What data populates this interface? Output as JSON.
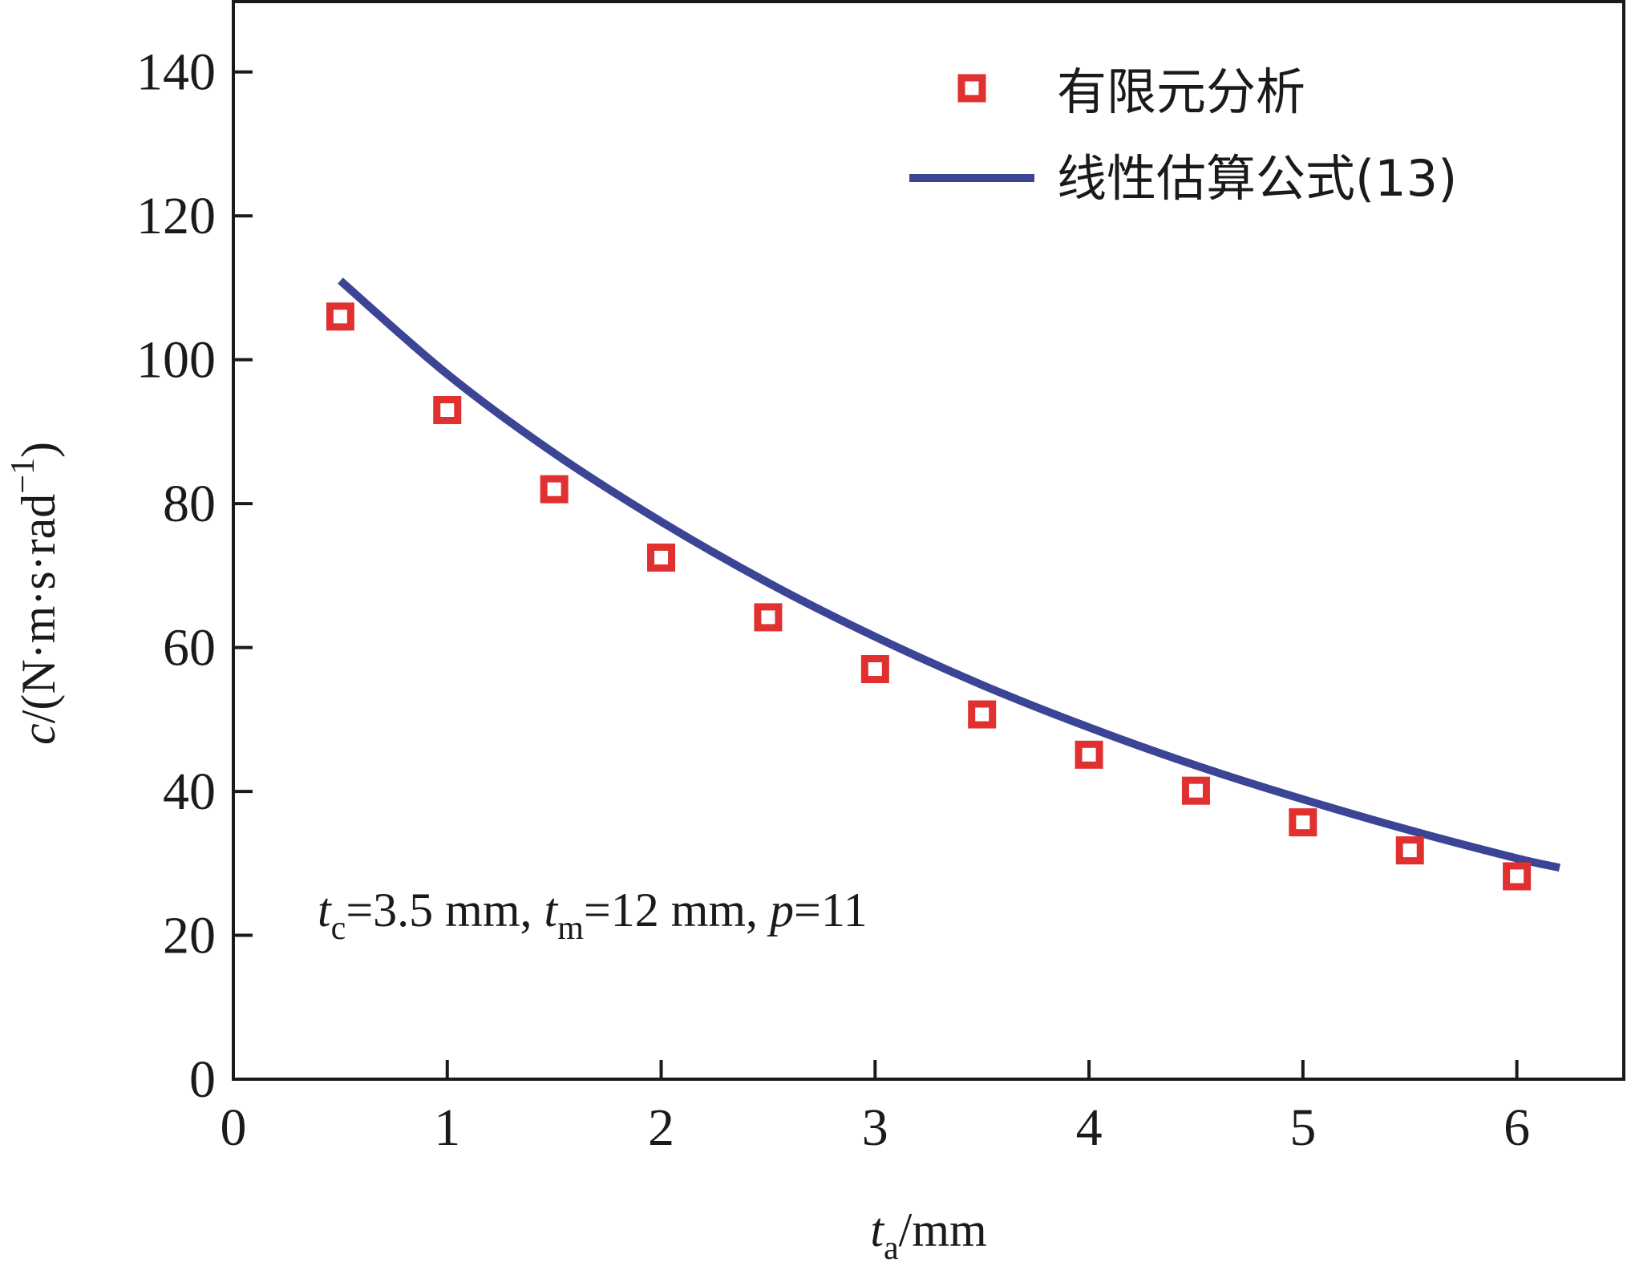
{
  "chart_data": {
    "type": "scatter",
    "xlabel": {
      "var": "t",
      "sub": "a",
      "unit": "/mm"
    },
    "ylabel": {
      "var": "c",
      "unit": "/(N·m·s·rad",
      "sup": "−1",
      "close": ")"
    },
    "xlim": [
      0,
      6.5
    ],
    "ylim": [
      0,
      150
    ],
    "xticks": [
      0,
      1,
      2,
      3,
      4,
      5,
      6
    ],
    "yticks": [
      0,
      20,
      40,
      60,
      80,
      100,
      120,
      140
    ],
    "legend_position": "top-right",
    "grid": false,
    "series": [
      {
        "name": "有限元分析",
        "kind": "markers",
        "marker": "square",
        "color": "#e03030",
        "x": [
          0.5,
          1.0,
          1.5,
          2.0,
          2.5,
          3.0,
          3.5,
          4.0,
          4.5,
          5.0,
          5.5,
          6.0
        ],
        "y": [
          106.0,
          93.0,
          82.0,
          72.5,
          64.2,
          57.0,
          50.7,
          45.1,
          40.1,
          35.7,
          31.8,
          28.2
        ]
      },
      {
        "name": "线性估算公式(13)",
        "kind": "line",
        "color": "#3c4595",
        "x": [
          0.5,
          1.0,
          1.5,
          2.0,
          2.5,
          3.0,
          3.5,
          4.0,
          4.5,
          5.0,
          5.5,
          6.0,
          6.2
        ],
        "y": [
          111.0,
          98.0,
          87.0,
          77.5,
          69.0,
          61.5,
          54.8,
          48.9,
          43.6,
          38.9,
          34.6,
          30.7,
          29.4
        ]
      }
    ],
    "annotation": [
      {
        "var": "t",
        "sub": "c",
        "text": "=3.5 mm, "
      },
      {
        "var": "t",
        "sub": "m",
        "text": "=12 mm, "
      },
      {
        "var": "p",
        "sub": "",
        "text": "=11"
      }
    ]
  }
}
